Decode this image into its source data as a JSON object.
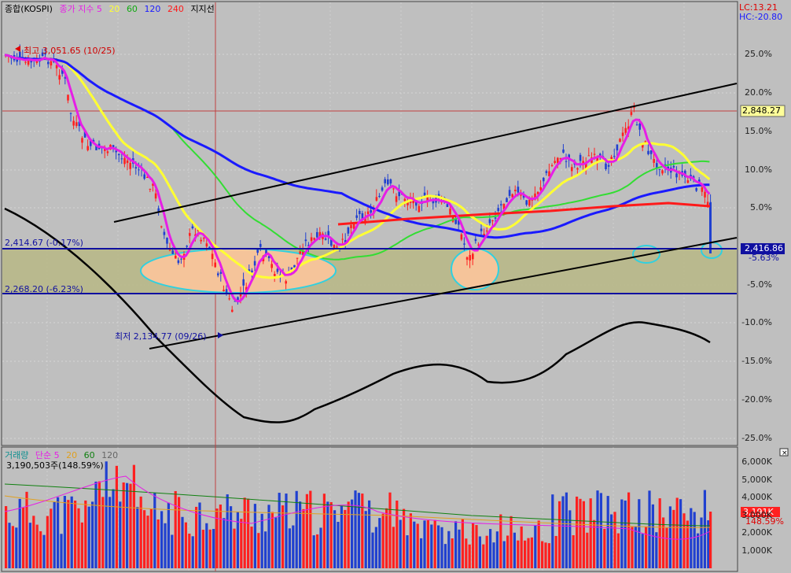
{
  "price_panel": {
    "legend": {
      "title": "종합(KOSPI)",
      "ma_prefix": "종가 지수 5",
      "ma20": "20",
      "ma60": "60",
      "ma120": "120",
      "ma240": "240",
      "support_label": "지지선"
    },
    "lc_label": "LC:13.21",
    "hc_label": "HC:-20.80",
    "high_annotation": "최고 3,051.65 (10/25)",
    "low_annotation": "최저 2,134.77 (09/26)",
    "line1_label": "2,414.67 (-0.17%)",
    "line2_label": "2,268.20 (-6.23%)",
    "cursor_price": "2,848.27",
    "current_price": "2,416.86",
    "current_pct": "-5.63%",
    "y_ticks": [
      "25.0%",
      "20.0%",
      "15.0%",
      "10.0%",
      "5.0%",
      "-5.0%",
      "-10.0%",
      "-15.0%",
      "-20.0%",
      "-25.0%"
    ],
    "colors": {
      "ma5": "#e61ee6",
      "ma20": "#ffff33",
      "ma60": "#33dd33",
      "ma120": "#1a1aff",
      "ma240": "#ff1a1a",
      "up": "#ff2020",
      "down": "#2040d0",
      "zone": "#b8b888",
      "circle": "#f5c49a"
    }
  },
  "volume_panel": {
    "legend": {
      "title": "거래량",
      "ma_prefix": "단순 5",
      "ma20": "20",
      "ma60": "60",
      "ma120": "120"
    },
    "volume_value": "3,190,503주(148.59%)",
    "y_ticks": [
      "6,000K",
      "5,000K",
      "4,000K",
      "3,000K",
      "2,000K",
      "1,000K"
    ],
    "current_badge": "3,191K",
    "current_pct": "148.59%"
  }
}
